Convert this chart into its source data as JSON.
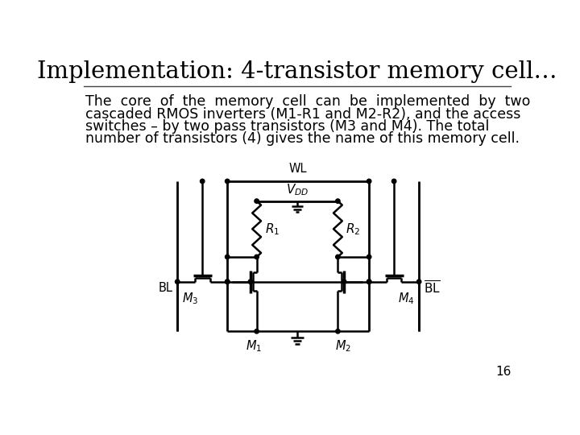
{
  "title": "Implementation: 4-transistor memory cell…",
  "body_lines": [
    "The  core  of  the  memory  cell  can  be  implemented  by  two",
    "cascaded RMOS inverters (M1-R1 and M2-R2), and the access",
    "switches – by two pass transistors (M3 and M4). The total",
    "number of transistors (4) gives the name of this memory cell."
  ],
  "page_number": "16",
  "bg_color": "#ffffff",
  "line_color": "#000000",
  "title_fontsize": 21,
  "body_fontsize": 12.5
}
